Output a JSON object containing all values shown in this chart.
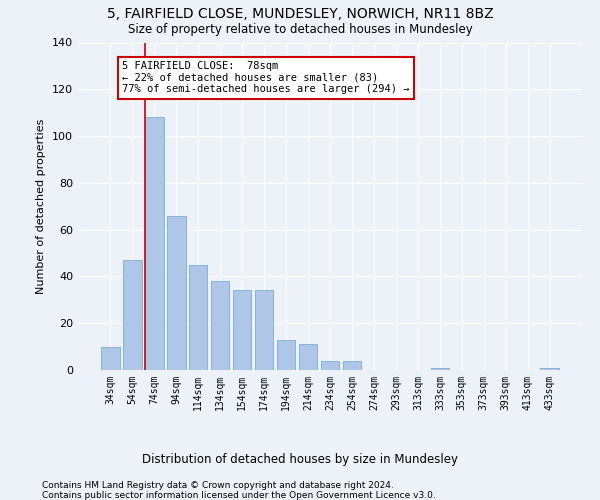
{
  "title": "5, FAIRFIELD CLOSE, MUNDESLEY, NORWICH, NR11 8BZ",
  "subtitle": "Size of property relative to detached houses in Mundesley",
  "xlabel": "Distribution of detached houses by size in Mundesley",
  "ylabel": "Number of detached properties",
  "categories": [
    "34sqm",
    "54sqm",
    "74sqm",
    "94sqm",
    "114sqm",
    "134sqm",
    "154sqm",
    "174sqm",
    "194sqm",
    "214sqm",
    "234sqm",
    "254sqm",
    "274sqm",
    "293sqm",
    "313sqm",
    "333sqm",
    "353sqm",
    "373sqm",
    "393sqm",
    "413sqm",
    "433sqm"
  ],
  "values": [
    10,
    47,
    108,
    66,
    45,
    38,
    34,
    34,
    13,
    11,
    4,
    4,
    0,
    0,
    0,
    1,
    0,
    0,
    0,
    0,
    1
  ],
  "bar_color": "#aec6e8",
  "bar_edge_color": "#7aadd4",
  "bg_color": "#edf2f9",
  "grid_color": "#ffffff",
  "property_line_color": "#cc0000",
  "annotation_text_line1": "5 FAIRFIELD CLOSE:  78sqm",
  "annotation_text_line2": "← 22% of detached houses are smaller (83)",
  "annotation_text_line3": "77% of semi-detached houses are larger (294) →",
  "annotation_box_color": "#ffffff",
  "annotation_box_edge_color": "#cc0000",
  "ylim": [
    0,
    140
  ],
  "yticks": [
    0,
    20,
    40,
    60,
    80,
    100,
    120,
    140
  ],
  "footer_line1": "Contains HM Land Registry data © Crown copyright and database right 2024.",
  "footer_line2": "Contains public sector information licensed under the Open Government Licence v3.0."
}
